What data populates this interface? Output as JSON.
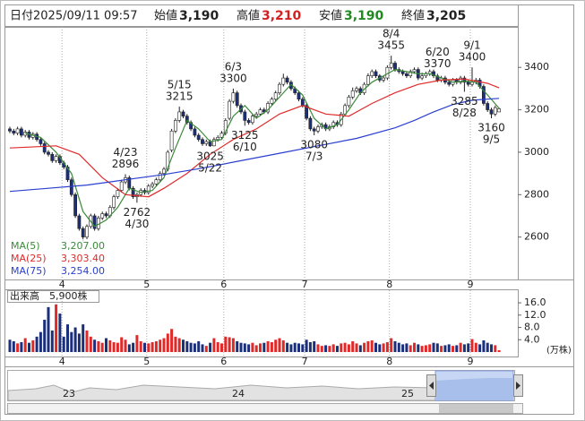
{
  "header": {
    "date_label": "日付",
    "date": "2025/09/11 09:57",
    "open_label": "始値",
    "open": "3,190",
    "high_label": "高値",
    "high": "3,210",
    "low_label": "安値",
    "low": "3,190",
    "close_label": "終値",
    "close": "3,205"
  },
  "chart_data": [
    {
      "type": "candlestick",
      "up_color": "#ffffff",
      "down_color": "#1c2f7a",
      "categories": [
        null,
        null,
        null,
        null,
        null,
        null,
        null,
        null,
        null,
        null,
        null,
        null,
        null,
        null,
        "4",
        null,
        null,
        null,
        null,
        null,
        null,
        null,
        null,
        null,
        null,
        null,
        null,
        null,
        null,
        null,
        null,
        null,
        null,
        null,
        null,
        null,
        "5",
        null,
        null,
        null,
        null,
        null,
        null,
        null,
        null,
        null,
        null,
        null,
        null,
        null,
        null,
        null,
        null,
        null,
        null,
        null,
        "6",
        null,
        null,
        null,
        null,
        null,
        null,
        null,
        null,
        null,
        null,
        null,
        null,
        null,
        null,
        null,
        null,
        null,
        null,
        null,
        null,
        "7",
        null,
        null,
        null,
        null,
        null,
        null,
        null,
        null,
        null,
        null,
        null,
        null,
        null,
        null,
        null,
        null,
        null,
        null,
        null,
        null,
        null,
        "8",
        null,
        null,
        null,
        null,
        null,
        null,
        null,
        null,
        null,
        null,
        null,
        null,
        null,
        null,
        null,
        null,
        null,
        null,
        null,
        null,
        "9",
        null,
        null,
        null,
        null,
        null,
        null,
        null
      ],
      "open": [
        3110,
        3100,
        3090,
        3110,
        3080,
        3095,
        3070,
        3085,
        3060,
        3040,
        3000,
        2990,
        2960,
        2980,
        2950,
        2930,
        2870,
        2800,
        2700,
        2640,
        2600,
        2650,
        2700,
        2640,
        2690,
        2710,
        2700,
        2740,
        2790,
        2820,
        2860,
        2880,
        2830,
        2790,
        2800,
        2820,
        2810,
        2840,
        2850,
        2870,
        2900,
        2920,
        3010,
        3100,
        3150,
        3190,
        3170,
        3140,
        3110,
        3080,
        3060,
        3040,
        3050,
        3030,
        3060,
        3070,
        3090,
        3160,
        3240,
        3280,
        3220,
        3190,
        3150,
        3140,
        3170,
        3180,
        3200,
        3190,
        3230,
        3250,
        3280,
        3320,
        3350,
        3330,
        3300,
        3280,
        3250,
        3220,
        3160,
        3110,
        3100,
        3120,
        3130,
        3110,
        3120,
        3140,
        3130,
        3180,
        3220,
        3260,
        3290,
        3300,
        3280,
        3320,
        3360,
        3380,
        3360,
        3340,
        3350,
        3400,
        3420,
        3390,
        3380,
        3370,
        3360,
        3380,
        3390,
        3350,
        3360,
        3370,
        3380,
        3360,
        3340,
        3350,
        3330,
        3320,
        3340,
        3330,
        3350,
        3330,
        3320,
        3330,
        3340,
        3310,
        3230,
        3200,
        3180,
        3190
      ],
      "high": [
        3120,
        3110,
        3120,
        3120,
        3105,
        3105,
        3095,
        3095,
        3070,
        3050,
        3010,
        3000,
        2990,
        2990,
        2960,
        2940,
        2880,
        2810,
        2710,
        2650,
        2660,
        2710,
        2710,
        2700,
        2720,
        2720,
        2750,
        2800,
        2830,
        2870,
        2896,
        2890,
        2840,
        2810,
        2830,
        2830,
        2850,
        2860,
        2880,
        2910,
        2930,
        3010,
        3110,
        3160,
        3215,
        3200,
        3180,
        3150,
        3120,
        3090,
        3070,
        3060,
        3060,
        3070,
        3080,
        3100,
        3160,
        3250,
        3300,
        3290,
        3230,
        3200,
        3160,
        3180,
        3190,
        3210,
        3210,
        3240,
        3260,
        3290,
        3330,
        3370,
        3360,
        3340,
        3310,
        3290,
        3260,
        3230,
        3170,
        3120,
        3130,
        3140,
        3140,
        3130,
        3150,
        3150,
        3190,
        3230,
        3270,
        3305,
        3310,
        3310,
        3330,
        3372,
        3390,
        3390,
        3368,
        3360,
        3410,
        3455,
        3430,
        3400,
        3390,
        3380,
        3390,
        3400,
        3400,
        3375,
        3380,
        3390,
        3390,
        3370,
        3360,
        3360,
        3340,
        3350,
        3350,
        3360,
        3360,
        3340,
        3400,
        3350,
        3350,
        3320,
        3240,
        3210,
        3220,
        3210
      ],
      "low": [
        3090,
        3080,
        3080,
        3070,
        3070,
        3060,
        3060,
        3050,
        3030,
        2990,
        2980,
        2950,
        2950,
        2940,
        2920,
        2860,
        2790,
        2690,
        2630,
        2580,
        2590,
        2640,
        2630,
        2630,
        2680,
        2690,
        2690,
        2730,
        2780,
        2810,
        2850,
        2820,
        2780,
        2762,
        2790,
        2800,
        2800,
        2830,
        2840,
        2860,
        2890,
        2910,
        3000,
        3090,
        3140,
        3160,
        3130,
        3100,
        3070,
        3050,
        3030,
        3030,
        3025,
        3028,
        3050,
        3060,
        3080,
        3150,
        3230,
        3210,
        3180,
        3125,
        3130,
        3130,
        3160,
        3170,
        3180,
        3180,
        3220,
        3240,
        3270,
        3310,
        3320,
        3290,
        3270,
        3240,
        3210,
        3150,
        3100,
        3080,
        3090,
        3110,
        3100,
        3100,
        3110,
        3120,
        3120,
        3170,
        3210,
        3250,
        3280,
        3270,
        3270,
        3310,
        3350,
        3350,
        3330,
        3330,
        3340,
        3390,
        3380,
        3370,
        3360,
        3350,
        3350,
        3370,
        3340,
        3340,
        3350,
        3360,
        3350,
        3330,
        3330,
        3320,
        3310,
        3310,
        3320,
        3320,
        3285,
        3310,
        3310,
        3320,
        3300,
        3220,
        3190,
        3160,
        3170,
        3190
      ],
      "close": [
        3100,
        3090,
        3110,
        3080,
        3095,
        3070,
        3085,
        3060,
        3040,
        3000,
        2990,
        2960,
        2980,
        2950,
        2930,
        2870,
        2800,
        2700,
        2640,
        2600,
        2650,
        2700,
        2640,
        2690,
        2710,
        2700,
        2740,
        2790,
        2820,
        2860,
        2880,
        2830,
        2790,
        2800,
        2820,
        2810,
        2840,
        2850,
        2870,
        2900,
        2920,
        3000,
        3100,
        3150,
        3190,
        3170,
        3140,
        3110,
        3080,
        3060,
        3040,
        3050,
        3030,
        3060,
        3070,
        3090,
        3150,
        3240,
        3280,
        3220,
        3190,
        3150,
        3140,
        3170,
        3180,
        3200,
        3190,
        3230,
        3250,
        3280,
        3320,
        3350,
        3330,
        3300,
        3280,
        3250,
        3220,
        3160,
        3110,
        3100,
        3120,
        3130,
        3110,
        3120,
        3140,
        3130,
        3180,
        3220,
        3260,
        3290,
        3300,
        3280,
        3320,
        3360,
        3380,
        3360,
        3340,
        3350,
        3400,
        3420,
        3390,
        3380,
        3370,
        3360,
        3380,
        3390,
        3350,
        3360,
        3370,
        3380,
        3360,
        3340,
        3350,
        3330,
        3320,
        3340,
        3330,
        3350,
        3330,
        3320,
        3330,
        3340,
        3310,
        3230,
        3200,
        3180,
        3210,
        3205
      ],
      "ylim": [
        2400,
        3591
      ],
      "yticks": [
        2600,
        2800,
        3000,
        3200,
        3400
      ],
      "annotations": [
        {
          "date": "4/23",
          "price": 2896,
          "kind": "high"
        },
        {
          "date": "4/30",
          "price": 2762,
          "kind": "low"
        },
        {
          "date": "5/15",
          "price": 3215,
          "kind": "high"
        },
        {
          "date": "5/22",
          "price": 3025,
          "kind": "low"
        },
        {
          "date": "6/3",
          "price": 3300,
          "kind": "high"
        },
        {
          "date": "6/10",
          "price": 3125,
          "kind": "low"
        },
        {
          "date": "6/20",
          "price": 3370,
          "kind": "high"
        },
        {
          "date": "7/3",
          "price": 3080,
          "kind": "low"
        },
        {
          "date": "8/4",
          "price": 3455,
          "kind": "high"
        },
        {
          "date": "8/28",
          "price": 3285,
          "kind": "low"
        },
        {
          "date": "9/1",
          "price": 3400,
          "kind": "high"
        },
        {
          "date": "9/5",
          "price": 3160,
          "kind": "low"
        }
      ],
      "lines": [
        {
          "name": "MA(5)",
          "last_label": "3,207.00",
          "color": "#3a8a3a",
          "x": [
            4,
            8,
            12,
            16,
            19,
            22,
            25,
            28,
            31,
            34,
            37,
            40,
            43,
            46,
            49,
            52,
            55,
            58,
            61,
            64,
            67,
            70,
            73,
            76,
            79,
            82,
            85,
            88,
            91,
            94,
            97,
            100,
            103,
            106,
            109,
            112,
            115,
            118,
            121,
            124,
            127
          ],
          "values": [
            3090,
            3070,
            3000,
            2900,
            2720,
            2650,
            2680,
            2740,
            2830,
            2810,
            2820,
            2880,
            3020,
            3150,
            3110,
            3050,
            3060,
            3170,
            3220,
            3160,
            3200,
            3260,
            3320,
            3270,
            3160,
            3110,
            3130,
            3200,
            3280,
            3330,
            3360,
            3390,
            3380,
            3370,
            3370,
            3350,
            3330,
            3335,
            3330,
            3270,
            3207
          ]
        },
        {
          "name": "MA(25)",
          "last_label": "3,303.40",
          "color": "#e02a2a",
          "x": [
            0,
            12,
            18,
            24,
            30,
            36,
            40,
            46,
            52,
            58,
            64,
            70,
            76,
            82,
            88,
            94,
            100,
            106,
            112,
            118,
            124,
            127
          ],
          "values": [
            3020,
            3030,
            2990,
            2880,
            2800,
            2790,
            2830,
            2900,
            2990,
            3060,
            3110,
            3180,
            3220,
            3180,
            3170,
            3230,
            3280,
            3320,
            3340,
            3345,
            3325,
            3303.4
          ]
        },
        {
          "name": "MA(75)",
          "last_label": "3,254.00",
          "color": "#2a3fcf",
          "x": [
            0,
            10,
            20,
            30,
            40,
            50,
            60,
            70,
            80,
            90,
            100,
            105,
            110,
            115,
            120,
            127
          ],
          "values": [
            2815,
            2830,
            2845,
            2870,
            2895,
            2925,
            2960,
            2995,
            3030,
            3065,
            3115,
            3150,
            3190,
            3225,
            3245,
            3254
          ]
        }
      ]
    },
    {
      "type": "bar",
      "title": "出来高",
      "subtitle": "5,900株",
      "y_unit": "(万株)",
      "up_color": "#e02a2a",
      "down_color": "#1c2f7a",
      "categories": [
        null,
        null,
        null,
        null,
        null,
        null,
        null,
        null,
        null,
        null,
        null,
        null,
        null,
        null,
        "4",
        null,
        null,
        null,
        null,
        null,
        null,
        null,
        null,
        null,
        null,
        null,
        null,
        null,
        null,
        null,
        null,
        null,
        null,
        null,
        null,
        null,
        "5",
        null,
        null,
        null,
        null,
        null,
        null,
        null,
        null,
        null,
        null,
        null,
        null,
        null,
        null,
        null,
        null,
        null,
        null,
        null,
        "6",
        null,
        null,
        null,
        null,
        null,
        null,
        null,
        null,
        null,
        null,
        null,
        null,
        null,
        null,
        null,
        null,
        null,
        null,
        null,
        null,
        "7",
        null,
        null,
        null,
        null,
        null,
        null,
        null,
        null,
        null,
        null,
        null,
        null,
        null,
        null,
        null,
        null,
        null,
        null,
        null,
        null,
        null,
        "8",
        null,
        null,
        null,
        null,
        null,
        null,
        null,
        null,
        null,
        null,
        null,
        null,
        null,
        null,
        null,
        null,
        null,
        null,
        null,
        null,
        "9",
        null,
        null,
        null,
        null,
        null,
        null,
        null
      ],
      "values": [
        4.0,
        3.5,
        2.8,
        3.2,
        4.5,
        3.0,
        3.8,
        5.0,
        6.5,
        10.5,
        14.6,
        7.0,
        15.5,
        12.5,
        5.0,
        9.0,
        6.5,
        8.0,
        6.0,
        9.0,
        7.0,
        5.0,
        4.0,
        3.5,
        3.0,
        4.5,
        3.8,
        3.2,
        3.0,
        4.8,
        4.0,
        2.5,
        3.0,
        5.5,
        3.5,
        3.0,
        2.8,
        3.2,
        3.5,
        4.0,
        4.5,
        6.0,
        7.5,
        5.0,
        4.5,
        4.0,
        3.5,
        3.0,
        2.8,
        3.5,
        2.5,
        2.0,
        3.0,
        4.5,
        3.2,
        2.8,
        5.0,
        4.8,
        4.5,
        3.5,
        3.0,
        2.8,
        2.5,
        3.0,
        2.2,
        2.8,
        3.0,
        3.5,
        3.2,
        4.0,
        4.5,
        3.8,
        3.0,
        2.5,
        3.0,
        2.8,
        2.5,
        4.0,
        3.2,
        3.5,
        2.5,
        2.0,
        2.2,
        2.0,
        2.5,
        2.0,
        2.8,
        3.0,
        2.5,
        3.5,
        2.8,
        2.2,
        3.0,
        3.5,
        3.8,
        3.0,
        2.5,
        2.8,
        3.2,
        4.5,
        3.5,
        3.0,
        2.5,
        2.8,
        2.2,
        3.0,
        2.5,
        2.0,
        2.2,
        2.5,
        3.0,
        2.8,
        2.0,
        2.2,
        2.5,
        2.0,
        2.2,
        3.0,
        2.5,
        2.8,
        4.2,
        3.0,
        2.5,
        3.8,
        3.0,
        2.5,
        2.2,
        0.59
      ],
      "ylim": [
        0,
        19.8
      ],
      "yticks": [
        {
          "value": 4,
          "label": "4.0"
        },
        {
          "value": 8,
          "label": "8.0"
        },
        {
          "value": 12,
          "label": "12.0"
        },
        {
          "value": 16,
          "label": "16.0"
        }
      ]
    }
  ],
  "navigator": {
    "labels": [
      "23",
      "24",
      "25"
    ]
  }
}
